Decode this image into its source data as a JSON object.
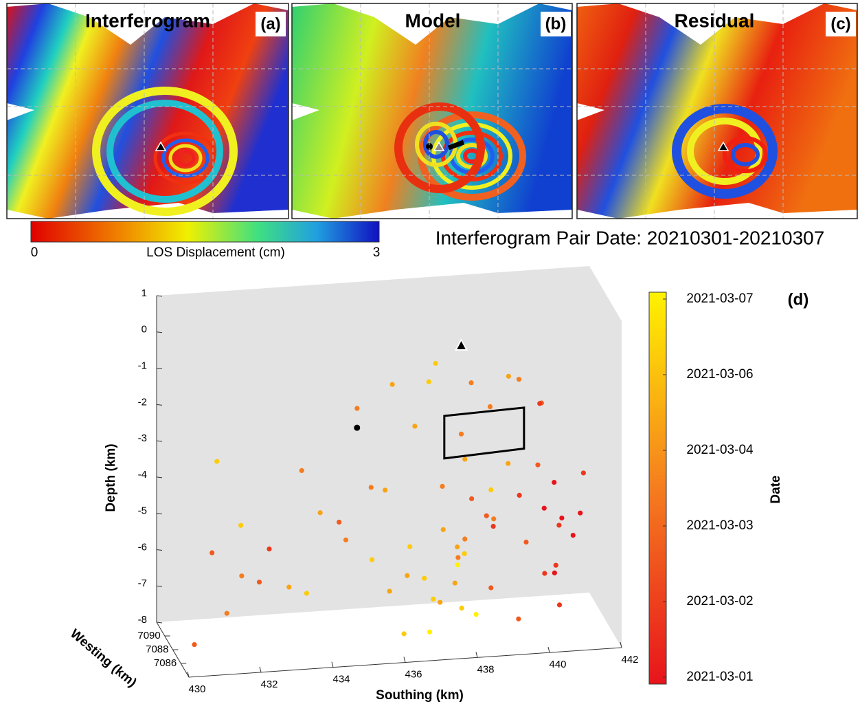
{
  "panels": [
    {
      "title": "Interferogram",
      "label": "(a)"
    },
    {
      "title": "Model",
      "label": "(b)"
    },
    {
      "title": "Residual",
      "label": "(c)"
    }
  ],
  "los_colorbar": {
    "label": "LOS Displacement (cm)",
    "ticks": [
      0,
      3
    ]
  },
  "pair_date": "Interferogram Pair Date: 20210301-20210307",
  "chart_data": {
    "type": "scatter3d",
    "label": "(d)",
    "xlabel": "Southing (km)",
    "ylabel": "Westing (km)",
    "zlabel": "Depth (km)",
    "xlim": [
      430,
      442
    ],
    "xticks": [
      430,
      432,
      434,
      436,
      438,
      440,
      442
    ],
    "ylim": [
      7084,
      7092
    ],
    "yticks": [
      7086,
      7088,
      7090
    ],
    "zlim": [
      -8,
      1
    ],
    "zticks": [
      1,
      0,
      -1,
      -2,
      -3,
      -4,
      -5,
      -6,
      -7,
      -8
    ],
    "colorbar": {
      "label": "Date",
      "ticks": [
        "2021-03-07",
        "2021-03-06",
        "2021-03-04",
        "2021-03-03",
        "2021-03-02",
        "2021-03-01"
      ],
      "colors": [
        "#e8141c",
        "#f57d1f",
        "#fff200"
      ]
    },
    "points": {
      "x": [
        437.5,
        437.8,
        438.2,
        438.6,
        437.2,
        438.9,
        437.9,
        438.4,
        437.6,
        438.1,
        436.8,
        437.3,
        438.7,
        439.0,
        437.0,
        436.5,
        438.3,
        437.7,
        438.0,
        436.9,
        440.3,
        440.6,
        440.9,
        441.1,
        440.4,
        440.8,
        440.2,
        441.3,
        440.7,
        440.5,
        439.8,
        439.5,
        436.2,
        437.1,
        438.5,
        439.2,
        440.0,
        439.6,
        437.4,
        436.6,
        438.8,
        440.4,
        439.9,
        438.0,
        431.2,
        431.8,
        432.4,
        433.0,
        432.9,
        431.5,
        433.6,
        434.2,
        434.8,
        435.3,
        435.9,
        432.0,
        430.6,
        431.0,
        435.5,
        436.0,
        434.5,
        433.8,
        439.3,
        438.6,
        441.5,
        436.3,
        437.9,
        439.7,
        435.0,
        438.1
      ],
      "y": [
        7088,
        7087,
        7089,
        7086,
        7090,
        7088,
        7087,
        7089,
        7086,
        7088,
        7090,
        7087,
        7088,
        7089,
        7086,
        7088,
        7087,
        7090,
        7089,
        7086,
        7088,
        7087,
        7089,
        7088,
        7086,
        7090,
        7087,
        7088,
        7089,
        7086,
        7088,
        7087,
        7089,
        7088,
        7090,
        7087,
        7086,
        7088,
        7089,
        7087,
        7088,
        7090,
        7086,
        7088,
        7089,
        7087,
        7088,
        7086,
        7090,
        7088,
        7087,
        7089,
        7088,
        7086,
        7087,
        7089,
        7088,
        7086,
        7088,
        7089,
        7087,
        7090,
        7088,
        7086,
        7089,
        7087,
        7088,
        7089,
        7087,
        7088
      ],
      "z": [
        -5.2,
        -5.8,
        -6.1,
        -6.5,
        -6.9,
        -5.0,
        -7.2,
        -4.6,
        -6.3,
        -5.5,
        -6.0,
        -7.0,
        -4.9,
        -5.4,
        -6.7,
        -6.4,
        -7.4,
        -4.4,
        -5.9,
        -7.6,
        -4.8,
        -5.1,
        -5.3,
        -5.6,
        -6.0,
        -4.5,
        -6.4,
        -5.0,
        -6.8,
        -7.1,
        -5.7,
        -4.2,
        -1.3,
        -1.1,
        -1.6,
        -0.9,
        -1.5,
        -1.2,
        -0.8,
        -2.1,
        -1.9,
        -2.3,
        -3.2,
        -2.6,
        -5.6,
        -5.9,
        -6.3,
        -6.1,
        -5.8,
        -7.1,
        -6.5,
        -4.7,
        -5.3,
        -5.5,
        -6.6,
        -4.9,
        -7.9,
        -2.5,
        -3.9,
        -4.2,
        -4.6,
        -3.7,
        -3.5,
        -3.8,
        -4.1,
        -7.8,
        -6.2,
        -8.0,
        -1.5,
        -3.3
      ],
      "date": [
        "2021-03-05",
        "2021-03-04",
        "2021-03-06",
        "2021-03-03",
        "2021-03-06",
        "2021-03-04",
        "2021-03-06",
        "2021-03-03",
        "2021-03-05",
        "2021-03-04",
        "2021-03-06",
        "2021-03-05",
        "2021-03-03",
        "2021-03-02",
        "2021-03-06",
        "2021-03-05",
        "2021-03-07",
        "2021-03-04",
        "2021-03-05",
        "2021-03-07",
        "2021-03-01",
        "2021-03-02",
        "2021-03-01",
        "2021-03-01",
        "2021-03-02",
        "2021-03-01",
        "2021-03-02",
        "2021-03-01",
        "2021-03-01",
        "2021-03-02",
        "2021-03-03",
        "2021-03-02",
        "2021-03-05",
        "2021-03-06",
        "2021-03-04",
        "2021-03-05",
        "2021-03-03",
        "2021-03-04",
        "2021-03-06",
        "2021-03-05",
        "2021-03-04",
        "2021-03-02",
        "2021-03-03",
        "2021-03-04",
        "2021-03-03",
        "2021-03-04",
        "2021-03-03",
        "2021-03-05",
        "2021-03-02",
        "2021-03-04",
        "2021-03-06",
        "2021-03-05",
        "2021-03-04",
        "2021-03-06",
        "2021-03-05",
        "2021-03-06",
        "2021-03-03",
        "2021-03-06",
        "2021-03-04",
        "2021-03-05",
        "2021-03-03",
        "2021-03-04",
        "2021-03-05",
        "2021-03-06",
        "2021-03-02",
        "2021-03-06",
        "2021-03-07",
        "2021-03-03",
        "2021-03-04",
        "2021-03-05"
      ]
    },
    "vent": {
      "x": 438.0,
      "y": 7088,
      "z": -0.15
    },
    "source": {
      "x": 435.11,
      "y": 7088,
      "z": -2.23
    },
    "fault": {
      "x": [
        437.53,
        439.74,
        439.74,
        437.53
      ],
      "y": [
        7088,
        7088,
        7088,
        7088
      ],
      "z": [
        -2.07,
        -1.99,
        -3.12,
        -3.24
      ]
    }
  }
}
